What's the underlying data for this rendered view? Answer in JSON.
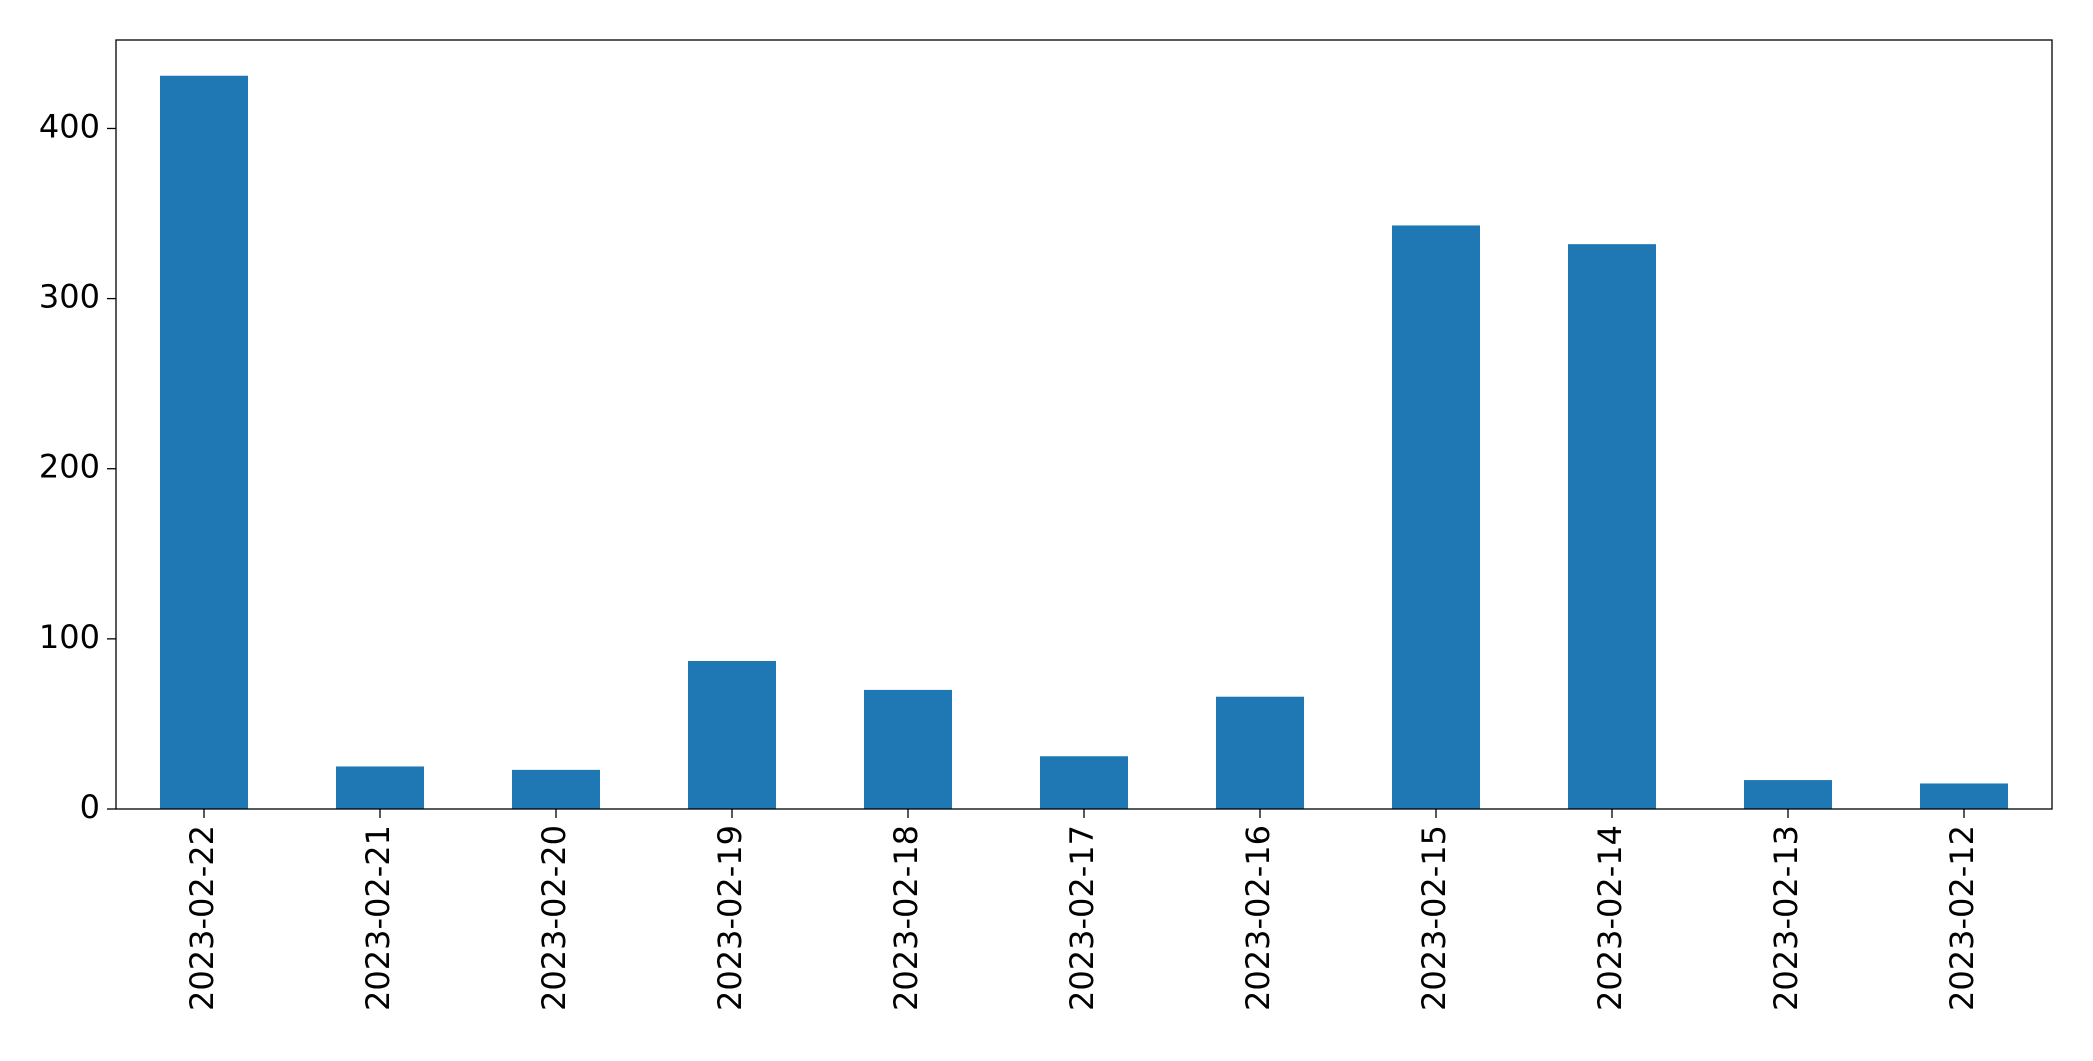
{
  "chart_data": {
    "type": "bar",
    "categories": [
      "2023-02-22",
      "2023-02-21",
      "2023-02-20",
      "2023-02-19",
      "2023-02-18",
      "2023-02-17",
      "2023-02-16",
      "2023-02-15",
      "2023-02-14",
      "2023-02-13",
      "2023-02-12"
    ],
    "values": [
      431,
      25,
      23,
      87,
      70,
      31,
      66,
      343,
      332,
      17,
      15
    ],
    "color": "#1f77b4",
    "ylim": [
      0,
      452
    ],
    "yticks": [
      0,
      100,
      200,
      300,
      400
    ],
    "grid": false
  }
}
